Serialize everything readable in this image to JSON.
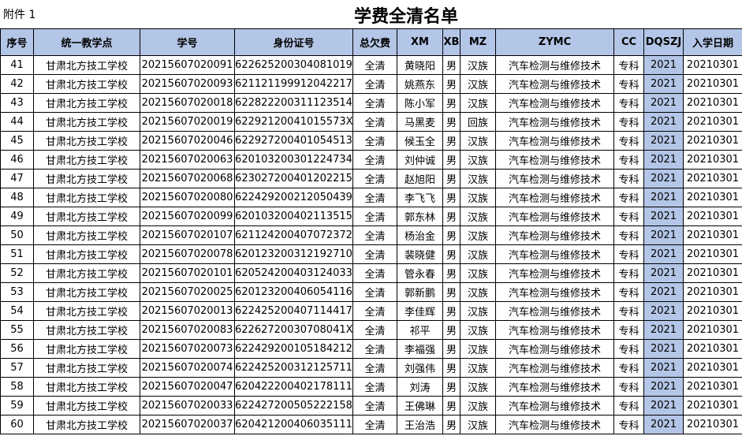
{
  "header": {
    "annex": "附件 1",
    "title": "学费全清名单"
  },
  "table": {
    "columns": [
      "序号",
      "统一教学点",
      "学号",
      "身份证号",
      "总欠费",
      "XM",
      "XB",
      "MZ",
      "ZYMC",
      "CC",
      "DQSZJ",
      "入学日期"
    ],
    "rows": [
      [
        "41",
        "甘肃北方技工学校",
        "20215607020091",
        "622625200304081019",
        "全清",
        "黄晓阳",
        "男",
        "汉族",
        "汽车检测与维修技术",
        "专科",
        "2021",
        "20210301"
      ],
      [
        "42",
        "甘肃北方技工学校",
        "20215607020093",
        "621121199912042217",
        "全清",
        "姚燕东",
        "男",
        "汉族",
        "汽车检测与维修技术",
        "专科",
        "2021",
        "20210301"
      ],
      [
        "43",
        "甘肃北方技工学校",
        "20215607020018",
        "622822200311123514",
        "全清",
        "陈小军",
        "男",
        "汉族",
        "汽车检测与维修技术",
        "专科",
        "2021",
        "20210301"
      ],
      [
        "44",
        "甘肃北方技工学校",
        "20215607020019",
        "62292120041015573X",
        "全清",
        "马黑麦",
        "男",
        "回族",
        "汽车检测与维修技术",
        "专科",
        "2021",
        "20210301"
      ],
      [
        "45",
        "甘肃北方技工学校",
        "20215607020046",
        "622927200401054513",
        "全清",
        "候玉全",
        "男",
        "汉族",
        "汽车检测与维修技术",
        "专科",
        "2021",
        "20210301"
      ],
      [
        "46",
        "甘肃北方技工学校",
        "20215607020063",
        "620103200301224734",
        "全清",
        "刘仲诚",
        "男",
        "汉族",
        "汽车检测与维修技术",
        "专科",
        "2021",
        "20210301"
      ],
      [
        "47",
        "甘肃北方技工学校",
        "20215607020068",
        "623027200401202215",
        "全清",
        "赵旭阳",
        "男",
        "汉族",
        "汽车检测与维修技术",
        "专科",
        "2021",
        "20210301"
      ],
      [
        "48",
        "甘肃北方技工学校",
        "20215607020080",
        "622429200212050439",
        "全清",
        "李飞飞",
        "男",
        "汉族",
        "汽车检测与维修技术",
        "专科",
        "2021",
        "20210301"
      ],
      [
        "49",
        "甘肃北方技工学校",
        "20215607020099",
        "620103200402113515",
        "全清",
        "郭东林",
        "男",
        "汉族",
        "汽车检测与维修技术",
        "专科",
        "2021",
        "20210301"
      ],
      [
        "50",
        "甘肃北方技工学校",
        "20215607020107",
        "621124200407072372",
        "全清",
        "杨治金",
        "男",
        "汉族",
        "汽车检测与维修技术",
        "专科",
        "2021",
        "20210301"
      ],
      [
        "51",
        "甘肃北方技工学校",
        "20215607020078",
        "620123200312192710",
        "全清",
        "裴晓健",
        "男",
        "汉族",
        "汽车检测与维修技术",
        "专科",
        "2021",
        "20210301"
      ],
      [
        "52",
        "甘肃北方技工学校",
        "20215607020101",
        "620524200403124033",
        "全清",
        "管永春",
        "男",
        "汉族",
        "汽车检测与维修技术",
        "专科",
        "2021",
        "20210301"
      ],
      [
        "53",
        "甘肃北方技工学校",
        "20215607020025",
        "620123200406054116",
        "全清",
        "郭新鹏",
        "男",
        "汉族",
        "汽车检测与维修技术",
        "专科",
        "2021",
        "20210301"
      ],
      [
        "54",
        "甘肃北方技工学校",
        "20215607020013",
        "622425200407114417",
        "全清",
        "李佳辉",
        "男",
        "汉族",
        "汽车检测与维修技术",
        "专科",
        "2021",
        "20210301"
      ],
      [
        "55",
        "甘肃北方技工学校",
        "20215607020083",
        "62262720030708041X",
        "全清",
        "祁平",
        "男",
        "汉族",
        "汽车检测与维修技术",
        "专科",
        "2021",
        "20210301"
      ],
      [
        "56",
        "甘肃北方技工学校",
        "20215607020073",
        "622429200105184212",
        "全清",
        "李福强",
        "男",
        "汉族",
        "汽车检测与维修技术",
        "专科",
        "2021",
        "20210301"
      ],
      [
        "57",
        "甘肃北方技工学校",
        "20215607020074",
        "622425200312125711",
        "全清",
        "刘强伟",
        "男",
        "汉族",
        "汽车检测与维修技术",
        "专科",
        "2021",
        "20210301"
      ],
      [
        "58",
        "甘肃北方技工学校",
        "20215607020047",
        "620422200402178111",
        "全清",
        "刘涛",
        "男",
        "汉族",
        "汽车检测与维修技术",
        "专科",
        "2021",
        "20210301"
      ],
      [
        "59",
        "甘肃北方技工学校",
        "20215607020033",
        "622427200505222158",
        "全清",
        "王佛琳",
        "男",
        "汉族",
        "汽车检测与维修技术",
        "专科",
        "2021",
        "20210301"
      ],
      [
        "60",
        "甘肃北方技工学校",
        "20215607020037",
        "620421200406035111",
        "全清",
        "王治浩",
        "男",
        "汉族",
        "汽车检测与维修技术",
        "专科",
        "2021",
        "20210301"
      ]
    ]
  }
}
